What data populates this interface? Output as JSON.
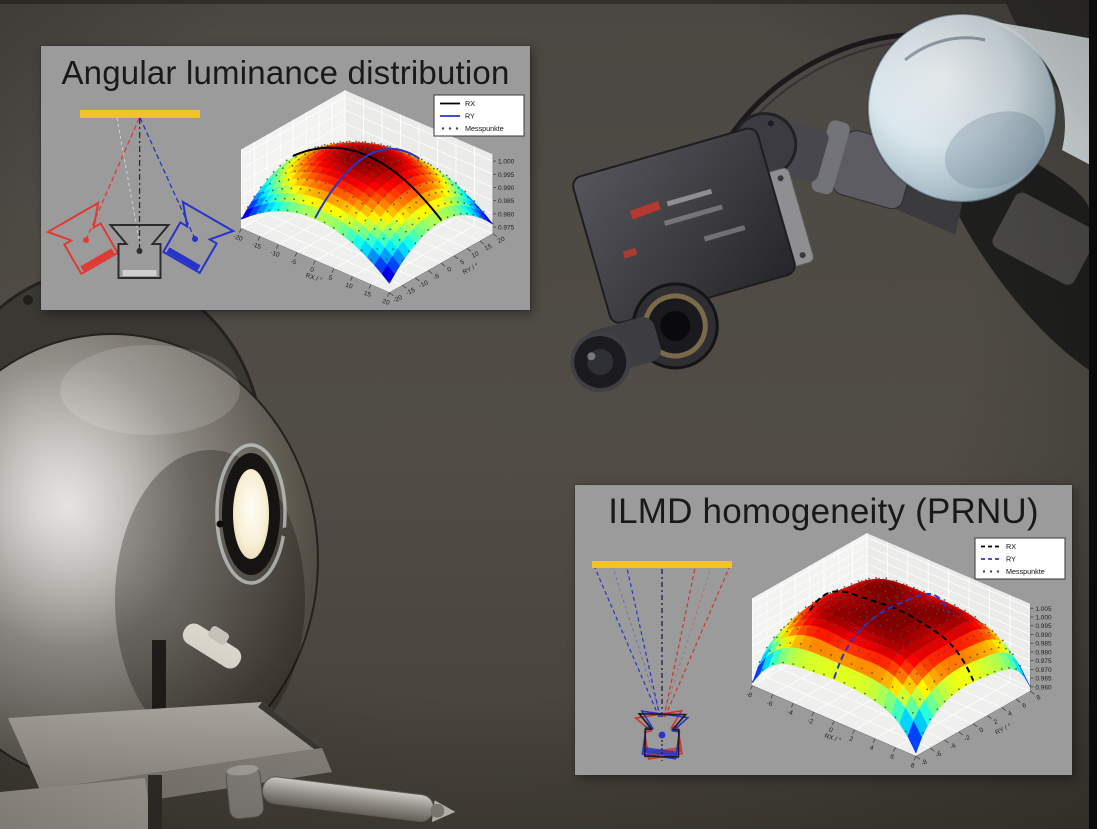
{
  "panels": [
    {
      "title": "Angular luminance distribution",
      "schematic": {
        "source_color": "#f2c327",
        "camera_left_color": "#e03a34",
        "camera_center_color": "#2c2c2c",
        "camera_right_color": "#2733c9",
        "sensor_center_color": "#cfcfcf",
        "sightline_faint_color": "#e6e6e6"
      }
    },
    {
      "title": "ILMD homogeneity (PRNU)",
      "schematic": {
        "source_color": "#f2c327",
        "camera_red_color": "#d0342e",
        "camera_dark_color": "#1d1d1d",
        "camera_blue_color": "#2733c9",
        "dot_color": "#2733c9"
      }
    }
  ],
  "chart_data": [
    {
      "type": "surface",
      "xlabel": "RX / °",
      "ylabel": "RY / °",
      "xlim": [
        -20,
        20
      ],
      "ylim": [
        -20,
        20
      ],
      "zlim": [
        0.9725,
        1.0025
      ],
      "x_ticks": [
        -20,
        -15,
        -10,
        -5,
        0,
        5,
        10,
        15,
        20
      ],
      "y_ticks": [
        -20,
        -15,
        -10,
        -5,
        0,
        5,
        10,
        15,
        20
      ],
      "z_ticks": [
        0.975,
        0.98,
        0.985,
        0.99,
        0.995,
        1.0
      ],
      "colormap": "jet",
      "grid": true,
      "surface_model": {
        "form": "radial_power_dome",
        "power": 2,
        "peak": 1.0005,
        "floor": 0.976,
        "ripple": 0
      },
      "legend": {
        "position": "upper right",
        "entries": [
          {
            "label": "RX",
            "color": "#000000",
            "style": "solid"
          },
          {
            "label": "RY",
            "color": "#2b35c8",
            "style": "solid"
          },
          {
            "label": "Messpunkte",
            "color": "#4a4a4a",
            "style": "dots"
          }
        ]
      },
      "series": [
        {
          "name": "RX",
          "kind": "profile",
          "along": "RY = 0"
        },
        {
          "name": "RY",
          "kind": "profile",
          "along": "RX = 0"
        },
        {
          "name": "Messpunkte",
          "kind": "scatter_grid",
          "points": "17x17"
        }
      ]
    },
    {
      "type": "surface",
      "xlabel": "RX / °",
      "ylabel": "RY / °",
      "xlim": [
        -8,
        8
      ],
      "ylim": [
        -8,
        8
      ],
      "zlim": [
        0.9575,
        1.0075
      ],
      "x_ticks": [
        -8,
        -6,
        -4,
        -2,
        0,
        2,
        4,
        6,
        8
      ],
      "y_ticks": [
        -8,
        -6,
        -4,
        -2,
        0,
        2,
        4,
        6,
        8
      ],
      "z_ticks": [
        0.96,
        0.965,
        0.97,
        0.975,
        0.98,
        0.985,
        0.99,
        0.995,
        1.0,
        1.005
      ],
      "colormap": "jet",
      "grid": true,
      "surface_model": {
        "form": "radial_power_dome",
        "power": 4,
        "peak": 1.0025,
        "floor": 0.959,
        "ripple": 0.0009
      },
      "legend": {
        "position": "upper right",
        "entries": [
          {
            "label": "RX",
            "color": "#000000",
            "style": "dashed"
          },
          {
            "label": "RY",
            "color": "#2b35c8",
            "style": "dashed"
          },
          {
            "label": "Messpunkte",
            "color": "#4a4a4a",
            "style": "dots"
          }
        ]
      },
      "series": [
        {
          "name": "RX",
          "kind": "profile",
          "along": "RY = 0"
        },
        {
          "name": "RY",
          "kind": "profile",
          "along": "RX = 0"
        },
        {
          "name": "Messpunkte",
          "kind": "scatter_grid",
          "points": "17x17"
        }
      ]
    }
  ]
}
